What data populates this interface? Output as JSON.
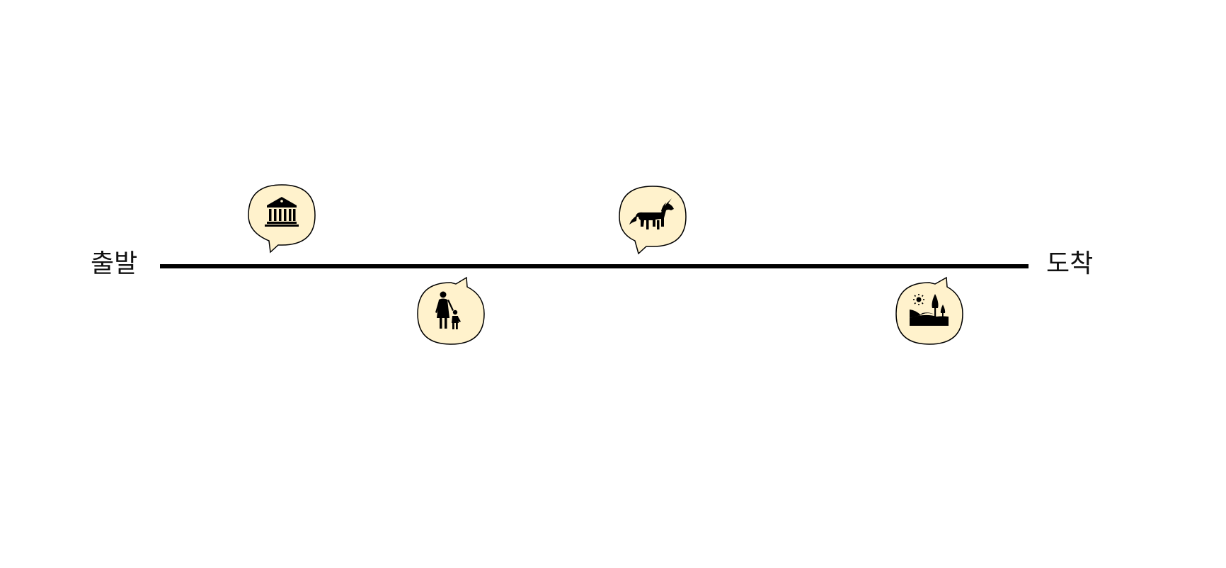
{
  "labels": {
    "start": "출발",
    "end": "도착"
  },
  "colors": {
    "line": "#000000",
    "bubble_fill": "#fff2cc",
    "bubble_stroke": "#000000",
    "icon": "#000000"
  },
  "stops": [
    {
      "icon": "museum-icon",
      "side": "above"
    },
    {
      "icon": "parent-child-icon",
      "side": "below"
    },
    {
      "icon": "unicorn-icon",
      "side": "above"
    },
    {
      "icon": "landscape-icon",
      "side": "below"
    }
  ]
}
